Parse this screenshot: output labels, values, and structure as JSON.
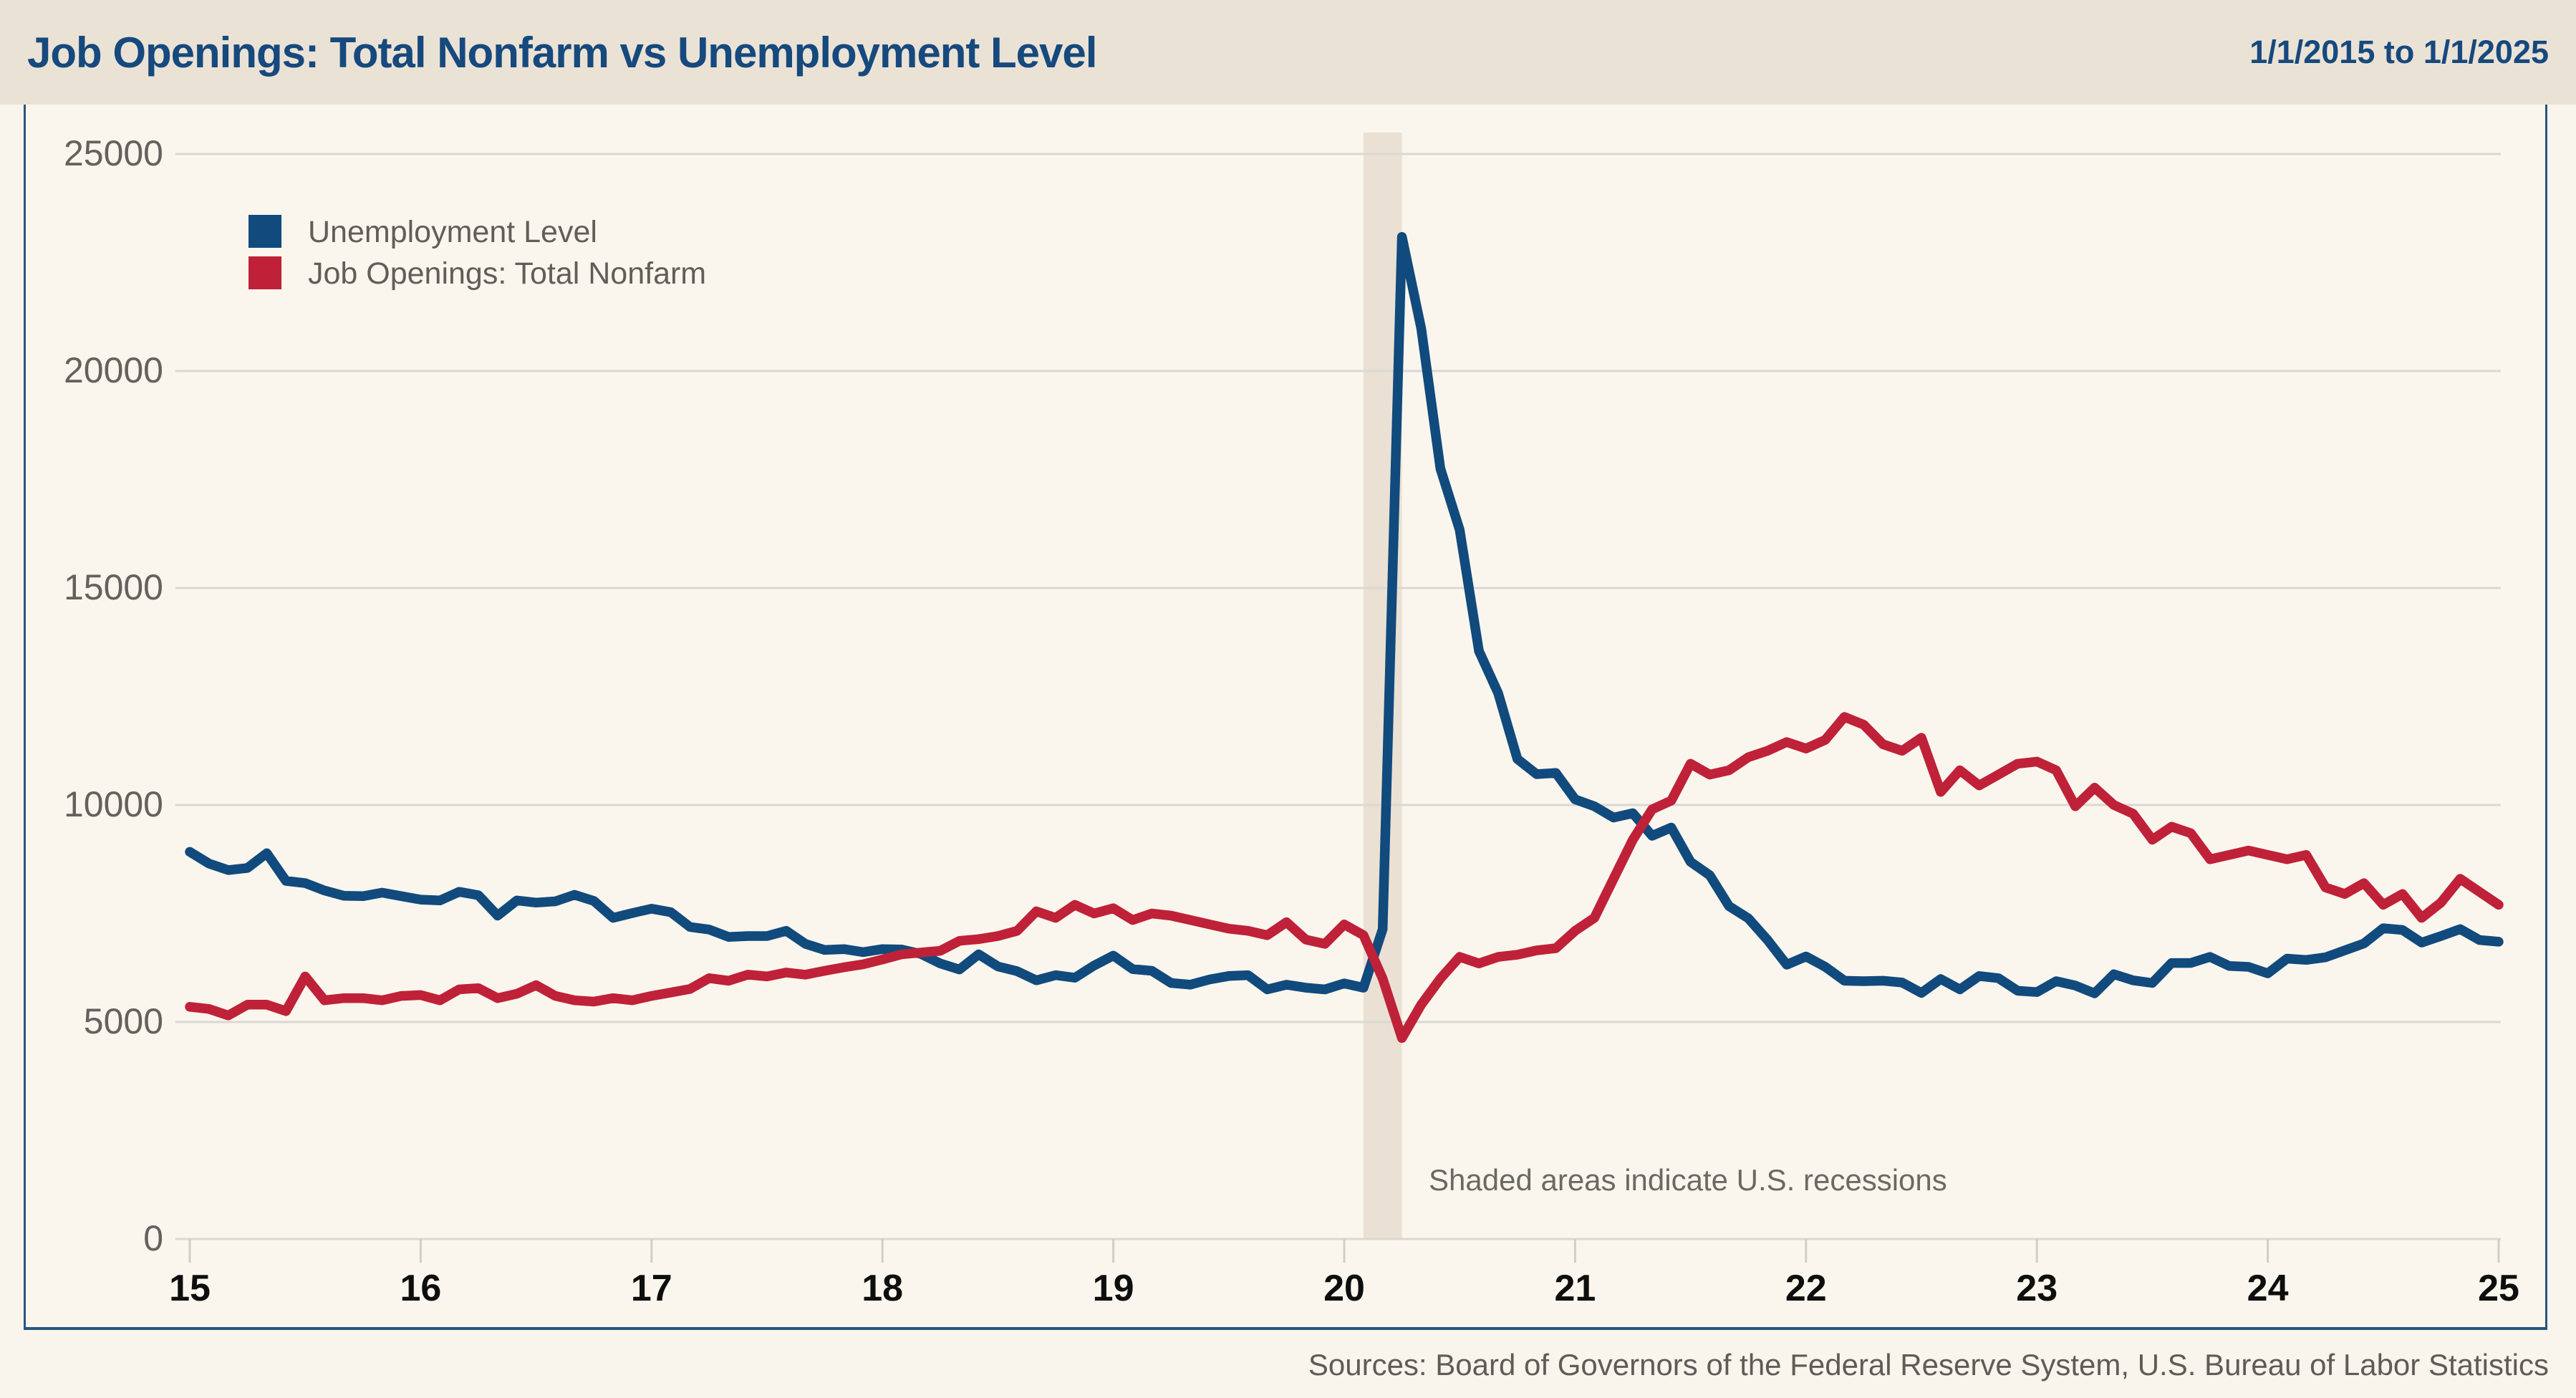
{
  "header": {
    "title": "Job Openings: Total Nonfarm vs Unemployment Level",
    "date_range": "1/1/2015 to 1/1/2025"
  },
  "footer": {
    "sources": "Sources: Board of Governors of the Federal Reserve System, U.S. Bureau of Labor Statistics"
  },
  "colors": {
    "accent_navy": "#16497d",
    "series_blue": "#114a7d",
    "series_red": "#bf2138",
    "header_bg": "#ebe2d6",
    "panel_bg": "#fbf6ed",
    "recession_band": "#eae1d4",
    "gridline": "#d9d8d3",
    "border_blue": "#27567f",
    "x_label": "#0e0e0e",
    "muted_text": "#63625e"
  },
  "chart_data": {
    "type": "line",
    "title": "Job Openings: Total Nonfarm vs Unemployment Level",
    "x_start": "2015-01",
    "x_end": "2025-01",
    "x_interval": "monthly",
    "x_tick_labels": [
      "15",
      "16",
      "17",
      "18",
      "19",
      "20",
      "21",
      "22",
      "23",
      "24",
      "25"
    ],
    "y_ticks": [
      0,
      5000,
      10000,
      15000,
      20000,
      25000
    ],
    "ylim": [
      0,
      25000
    ],
    "grid": "horizontal",
    "legend_position": "top-left",
    "annotation": "Shaded areas indicate U.S. recessions",
    "recession_bands": [
      {
        "start": "2020-02",
        "end": "2020-04"
      }
    ],
    "series": [
      {
        "name": "Unemployment Level",
        "color": "#114a7d",
        "values": [
          8920,
          8650,
          8500,
          8550,
          8890,
          8250,
          8200,
          8030,
          7910,
          7900,
          7980,
          7900,
          7820,
          7800,
          8000,
          7920,
          7450,
          7800,
          7750,
          7780,
          7930,
          7790,
          7400,
          7510,
          7610,
          7530,
          7190,
          7130,
          6960,
          6980,
          6980,
          7100,
          6800,
          6660,
          6680,
          6610,
          6680,
          6670,
          6570,
          6350,
          6210,
          6560,
          6280,
          6170,
          5960,
          6080,
          6020,
          6300,
          6530,
          6220,
          6180,
          5900,
          5860,
          5980,
          6060,
          6080,
          5750,
          5860,
          5790,
          5750,
          5890,
          5790,
          7140,
          23090,
          20980,
          17750,
          16340,
          13550,
          12580,
          11060,
          10710,
          10740,
          10130,
          9970,
          9710,
          9810,
          9290,
          9480,
          8690,
          8380,
          7670,
          7390,
          6890,
          6320,
          6510,
          6270,
          5950,
          5940,
          5950,
          5910,
          5670,
          5990,
          5750,
          6060,
          6010,
          5720,
          5690,
          5940,
          5840,
          5660,
          6100,
          5960,
          5900,
          6360,
          6360,
          6500,
          6290,
          6270,
          6120,
          6460,
          6430,
          6490,
          6650,
          6810,
          7160,
          7120,
          6830,
          6980,
          7140,
          6890,
          6850
        ]
      },
      {
        "name": "Job Openings: Total Nonfarm",
        "color": "#bf2138",
        "values": [
          5350,
          5300,
          5150,
          5400,
          5400,
          5250,
          6050,
          5500,
          5550,
          5550,
          5500,
          5600,
          5620,
          5500,
          5750,
          5780,
          5550,
          5650,
          5850,
          5600,
          5500,
          5470,
          5550,
          5500,
          5600,
          5680,
          5760,
          6010,
          5950,
          6090,
          6050,
          6140,
          6090,
          6180,
          6260,
          6330,
          6440,
          6560,
          6600,
          6640,
          6870,
          6910,
          6980,
          7100,
          7550,
          7400,
          7700,
          7500,
          7620,
          7350,
          7500,
          7450,
          7350,
          7250,
          7150,
          7100,
          7000,
          7300,
          6900,
          6800,
          7250,
          7000,
          6000,
          4630,
          5400,
          6000,
          6500,
          6350,
          6500,
          6550,
          6650,
          6700,
          7100,
          7400,
          8300,
          9200,
          9900,
          10100,
          10950,
          10700,
          10800,
          11100,
          11250,
          11450,
          11300,
          11500,
          12030,
          11850,
          11400,
          11250,
          11550,
          10300,
          10800,
          10450,
          10700,
          10950,
          11000,
          10800,
          9970,
          10400,
          10000,
          9800,
          9200,
          9500,
          9350,
          8750,
          8850,
          8950,
          8850,
          8750,
          8850,
          8100,
          7950,
          8200,
          7700,
          7950,
          7400,
          7750,
          8300,
          8000,
          7700
        ]
      }
    ]
  }
}
